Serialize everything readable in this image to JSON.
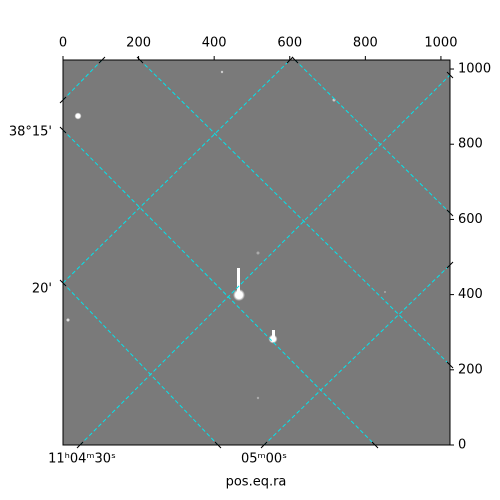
{
  "chart_data": {
    "type": "image",
    "xlabel": "pos.eq.ra",
    "xlim": [
      0,
      1024
    ],
    "ylim": [
      0,
      1024
    ],
    "xticks": [
      0,
      200,
      400,
      600,
      800,
      1000
    ],
    "yticks": [
      0,
      200,
      400,
      600,
      800,
      1000
    ],
    "dec_labels": [
      "38°15'",
      "20'"
    ],
    "ra_labels": [
      "11ʰ04ᵐ30ˢ",
      "05ᵐ00ˢ"
    ],
    "grid_color": "#00e5ee"
  }
}
